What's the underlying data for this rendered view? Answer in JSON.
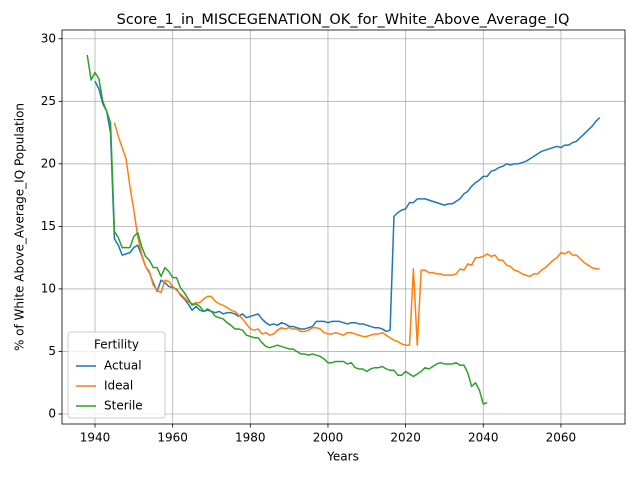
{
  "chart_data": {
    "type": "line",
    "title": "Score_1_in_MISCEGENATION_OK_for_White_Above_Average_IQ",
    "x_label": "Years",
    "y_label": "% of White Above_Average_IQ Population",
    "legend_title": "Fertility",
    "legend": "lower left",
    "grid": true,
    "xlim": [
      1931.5,
      2076.5
    ],
    "ylim": [
      -0.8,
      30.7
    ],
    "xticks": [
      1940,
      1960,
      1980,
      2000,
      2020,
      2040,
      2060
    ],
    "yticks": [
      0,
      5,
      10,
      15,
      20,
      25,
      30
    ],
    "x": [
      1938,
      1939,
      1940,
      1941,
      1942,
      1943,
      1944,
      1945,
      1946,
      1947,
      1948,
      1949,
      1950,
      1951,
      1952,
      1953,
      1954,
      1955,
      1956,
      1957,
      1958,
      1959,
      1960,
      1961,
      1962,
      1963,
      1964,
      1965,
      1966,
      1967,
      1968,
      1969,
      1970,
      1971,
      1972,
      1973,
      1974,
      1975,
      1976,
      1977,
      1978,
      1979,
      1980,
      1981,
      1982,
      1983,
      1984,
      1985,
      1986,
      1987,
      1988,
      1989,
      1990,
      1991,
      1992,
      1993,
      1994,
      1995,
      1996,
      1997,
      1998,
      1999,
      2000,
      2001,
      2002,
      2003,
      2004,
      2005,
      2006,
      2007,
      2008,
      2009,
      2010,
      2011,
      2012,
      2013,
      2014,
      2015,
      2016,
      2017,
      2018,
      2019,
      2020,
      2021,
      2022,
      2023,
      2024,
      2025,
      2026,
      2027,
      2028,
      2029,
      2030,
      2031,
      2032,
      2033,
      2034,
      2035,
      2036,
      2037,
      2038,
      2039,
      2040,
      2041,
      2042,
      2043,
      2044,
      2045,
      2046,
      2047,
      2048,
      2049,
      2050,
      2051,
      2052,
      2053,
      2054,
      2055,
      2056,
      2057,
      2058,
      2059,
      2060,
      2061,
      2062,
      2063,
      2064,
      2065,
      2066,
      2067,
      2068,
      2069,
      2070
    ],
    "series": [
      {
        "name": "Actual",
        "color": "#1f77b4",
        "values": [
          null,
          null,
          26.6,
          26.0,
          24.8,
          24.2,
          22.5,
          14.0,
          13.5,
          12.7,
          12.8,
          12.9,
          13.3,
          13.5,
          12.7,
          11.8,
          11.3,
          10.5,
          9.8,
          10.7,
          10.5,
          10.2,
          10.1,
          10.0,
          9.5,
          9.2,
          8.8,
          8.3,
          8.6,
          8.3,
          8.2,
          8.3,
          8.2,
          8.1,
          8.2,
          8.0,
          8.1,
          8.1,
          8.0,
          7.8,
          8.0,
          7.7,
          7.8,
          7.9,
          8.0,
          7.6,
          7.3,
          7.1,
          7.2,
          7.1,
          7.3,
          7.2,
          7.0,
          7.0,
          6.9,
          6.8,
          6.8,
          6.9,
          7.0,
          7.4,
          7.4,
          7.4,
          7.3,
          7.4,
          7.4,
          7.4,
          7.3,
          7.2,
          7.3,
          7.3,
          7.2,
          7.2,
          7.1,
          7.0,
          6.9,
          6.9,
          6.8,
          6.6,
          6.7,
          15.8,
          16.1,
          16.3,
          16.4,
          16.9,
          16.9,
          17.2,
          17.2,
          17.2,
          17.1,
          17.0,
          16.9,
          16.8,
          16.7,
          16.8,
          16.8,
          17.0,
          17.2,
          17.6,
          17.8,
          18.2,
          18.5,
          18.7,
          19.0,
          19.0,
          19.4,
          19.5,
          19.7,
          19.8,
          20.0,
          19.9,
          20.0,
          20.0,
          20.1,
          20.2,
          20.4,
          20.6,
          20.8,
          21.0,
          21.1,
          21.2,
          21.3,
          21.4,
          21.3,
          21.5,
          21.5,
          21.7,
          21.8,
          22.1,
          22.4,
          22.7,
          23.0,
          23.4,
          23.7
        ]
      },
      {
        "name": "Ideal",
        "color": "#ff7f0e",
        "values": [
          null,
          null,
          null,
          null,
          null,
          null,
          null,
          23.3,
          22.2,
          21.3,
          20.4,
          18.2,
          16.3,
          14.2,
          12.8,
          11.8,
          11.4,
          10.3,
          9.9,
          9.7,
          10.7,
          10.6,
          10.2,
          9.9,
          9.6,
          9.3,
          9.0,
          8.8,
          8.9,
          8.9,
          9.2,
          9.4,
          9.4,
          9.0,
          8.8,
          8.7,
          8.5,
          8.3,
          8.2,
          7.9,
          7.6,
          7.2,
          6.8,
          6.7,
          6.8,
          6.4,
          6.5,
          6.3,
          6.4,
          6.7,
          6.9,
          6.8,
          6.9,
          6.8,
          6.8,
          6.6,
          6.6,
          6.7,
          6.9,
          6.9,
          6.8,
          6.5,
          6.4,
          6.4,
          6.5,
          6.4,
          6.3,
          6.5,
          6.5,
          6.4,
          6.3,
          6.2,
          6.2,
          6.3,
          6.4,
          6.4,
          6.5,
          6.3,
          6.1,
          5.9,
          5.8,
          5.6,
          5.5,
          5.5,
          11.6,
          5.5,
          11.5,
          11.5,
          11.3,
          11.3,
          11.2,
          11.2,
          11.1,
          11.1,
          11.1,
          11.2,
          11.6,
          11.5,
          12.0,
          11.9,
          12.5,
          12.5,
          12.6,
          12.8,
          12.6,
          12.7,
          12.3,
          12.3,
          11.9,
          11.8,
          11.5,
          11.4,
          11.2,
          11.1,
          11.0,
          11.2,
          11.2,
          11.5,
          11.7,
          12.0,
          12.3,
          12.5,
          12.9,
          12.8,
          13.0,
          12.7,
          12.7,
          12.4,
          12.1,
          11.9,
          11.7,
          11.6,
          11.6
        ]
      },
      {
        "name": "Sterile",
        "color": "#2ca02c",
        "values": [
          28.7,
          26.7,
          27.3,
          26.8,
          25.0,
          24.2,
          23.3,
          14.6,
          14.1,
          13.3,
          13.3,
          13.3,
          14.2,
          14.5,
          13.4,
          12.6,
          12.3,
          11.7,
          11.7,
          11.0,
          11.7,
          11.4,
          10.9,
          10.9,
          10.1,
          9.7,
          9.2,
          8.7,
          8.8,
          8.6,
          8.2,
          8.4,
          8.2,
          7.8,
          7.7,
          7.6,
          7.3,
          7.1,
          6.8,
          6.8,
          6.7,
          6.3,
          6.2,
          6.1,
          6.1,
          5.7,
          5.4,
          5.3,
          5.4,
          5.5,
          5.4,
          5.3,
          5.2,
          5.2,
          5.0,
          4.8,
          4.8,
          4.7,
          4.8,
          4.7,
          4.6,
          4.4,
          4.1,
          4.1,
          4.2,
          4.2,
          4.2,
          4.0,
          4.1,
          3.7,
          3.6,
          3.6,
          3.4,
          3.6,
          3.7,
          3.7,
          3.8,
          3.6,
          3.5,
          3.5,
          3.1,
          3.1,
          3.4,
          3.2,
          3.0,
          3.2,
          3.4,
          3.7,
          3.6,
          3.8,
          4.0,
          4.1,
          4.0,
          4.0,
          4.0,
          4.1,
          3.9,
          3.9,
          3.3,
          2.2,
          2.5,
          1.9,
          0.8,
          0.9,
          null,
          null,
          null,
          null,
          null,
          null,
          null,
          null,
          null,
          null,
          null,
          null,
          null,
          null,
          null,
          null,
          null,
          null,
          null,
          null,
          null,
          null,
          null,
          null,
          null,
          null,
          null,
          null,
          null
        ]
      }
    ]
  }
}
